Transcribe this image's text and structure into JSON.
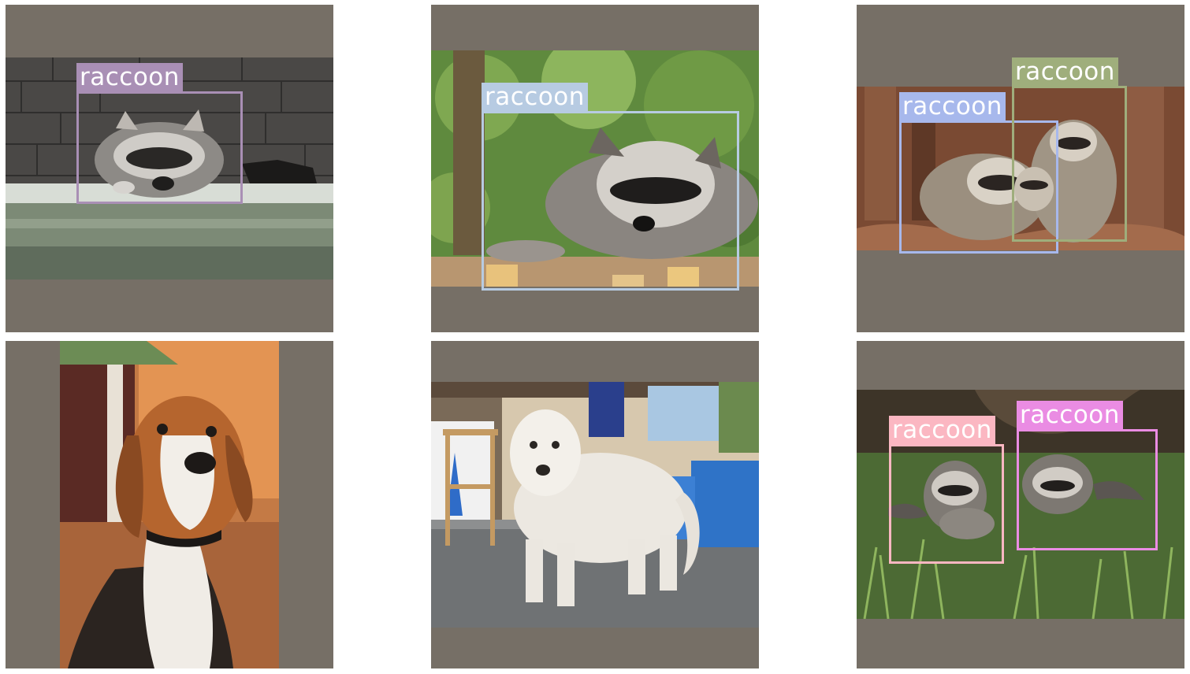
{
  "grid": {
    "tiles": [
      {
        "detections": [
          {
            "label": "raccoon",
            "color": "#a98fb5"
          }
        ]
      },
      {
        "detections": [
          {
            "label": "raccoon",
            "color": "#b7cbe2"
          }
        ]
      },
      {
        "detections": [
          {
            "label": "raccoon",
            "color": "#a7b8ec"
          },
          {
            "label": "raccoon",
            "color": "#9fae7c"
          }
        ]
      },
      {
        "detections": []
      },
      {
        "detections": []
      },
      {
        "detections": [
          {
            "label": "raccoon",
            "color": "#fbb7c2"
          },
          {
            "label": "raccoon",
            "color": "#ea8ce3"
          }
        ]
      }
    ]
  }
}
